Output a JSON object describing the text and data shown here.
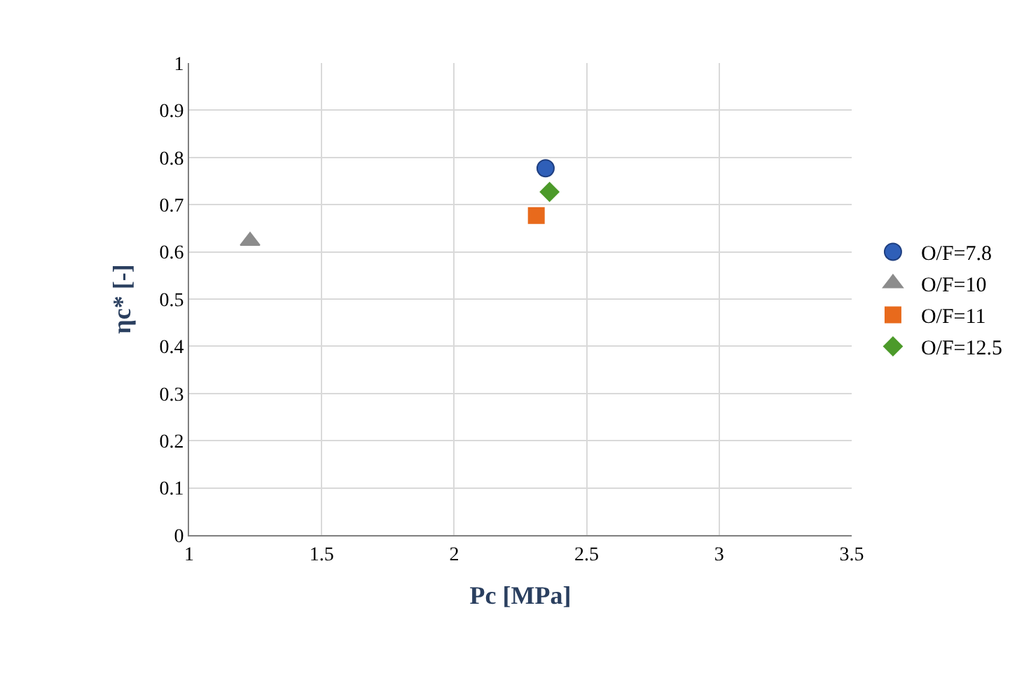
{
  "chart_data": {
    "type": "scatter",
    "xlabel": "Pc [MPa]",
    "ylabel": "ηc* [-]",
    "xlim": [
      1,
      3.5
    ],
    "xticks": [
      1,
      1.5,
      2,
      2.5,
      3,
      3.5
    ],
    "ylim": [
      0,
      1
    ],
    "yticks": [
      0,
      0.1,
      0.2,
      0.3,
      0.4,
      0.5,
      0.6,
      0.7,
      0.8,
      0.9,
      1
    ],
    "grid": true,
    "legend": "right",
    "series": [
      {
        "name": "O/F=7.8",
        "color": "#2f5fb8",
        "marker": "circle",
        "x": [
          2.345
        ],
        "values": [
          0.777
        ]
      },
      {
        "name": "O/F=10",
        "color": "#8c8c8c",
        "marker": "triangle",
        "x": [
          1.23
        ],
        "values": [
          0.623
        ]
      },
      {
        "name": "O/F=11",
        "color": "#e86a1c",
        "marker": "square",
        "x": [
          2.31
        ],
        "values": [
          0.677
        ]
      },
      {
        "name": "O/F=12.5",
        "color": "#4c9a2a",
        "marker": "diamond",
        "x": [
          2.36
        ],
        "values": [
          0.727
        ]
      }
    ]
  }
}
